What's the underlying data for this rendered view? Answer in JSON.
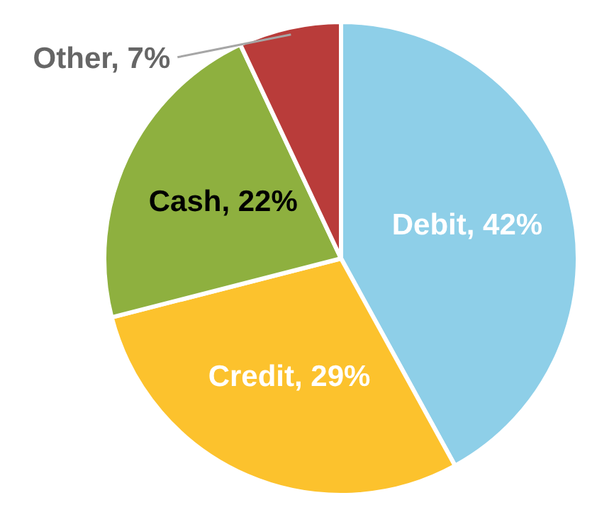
{
  "chart_data": {
    "type": "pie",
    "categories": [
      "Debit",
      "Credit",
      "Cash",
      "Other"
    ],
    "values": [
      42,
      29,
      22,
      7
    ],
    "value_labels": [
      "42%",
      "29%",
      "22%",
      "7%"
    ],
    "colors": [
      "#8ecfe8",
      "#fcc22d",
      "#8eb03f",
      "#b93c3a"
    ],
    "legend": false
  }
}
